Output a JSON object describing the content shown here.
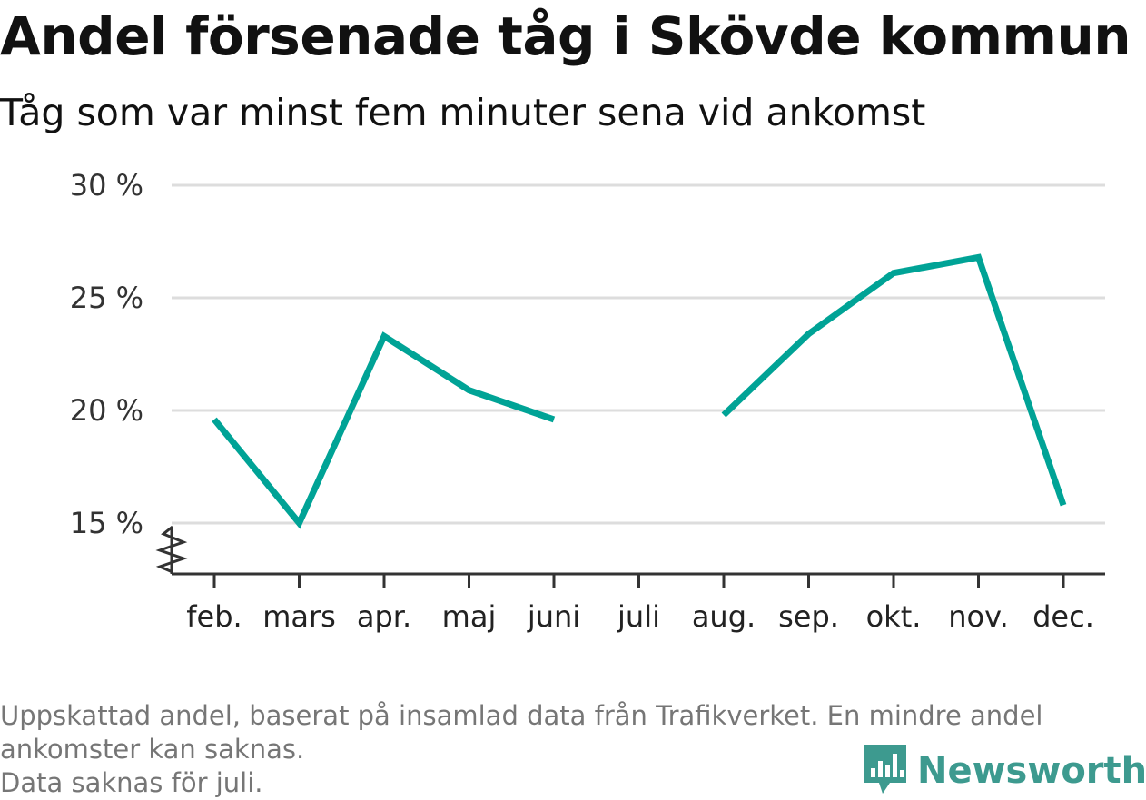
{
  "title": "Andel försenade tåg i Skövde kommun",
  "subtitle": "Tåg som var minst fem minuter sena vid ankomst",
  "footnote": {
    "line1": "Uppskattad andel, baserat på insamlad data från Trafikverket. En mindre andel",
    "line2": "ankomster kan saknas.",
    "line3": "Data saknas för juli."
  },
  "brand": {
    "name": "Newsworthy",
    "icon": "newsworthy-logo-icon",
    "color": "#3d9a8f"
  },
  "colors": {
    "line": "#00a396",
    "grid": "#dddddd",
    "axis": "#333333"
  },
  "chart_data": {
    "type": "line",
    "categories": [
      "feb.",
      "mars",
      "apr.",
      "maj",
      "juni",
      "juli",
      "aug.",
      "sep.",
      "okt.",
      "nov.",
      "dec."
    ],
    "values": [
      19.6,
      15.0,
      23.3,
      20.9,
      19.6,
      null,
      19.8,
      23.4,
      26.1,
      26.8,
      15.8
    ],
    "ylim": [
      15,
      30
    ],
    "yticks": [
      15,
      20,
      25,
      30
    ],
    "ytick_labels": [
      "15 %",
      "20 %",
      "25 %",
      "30 %"
    ],
    "axis_break": true,
    "grid": true,
    "legend": "none"
  }
}
